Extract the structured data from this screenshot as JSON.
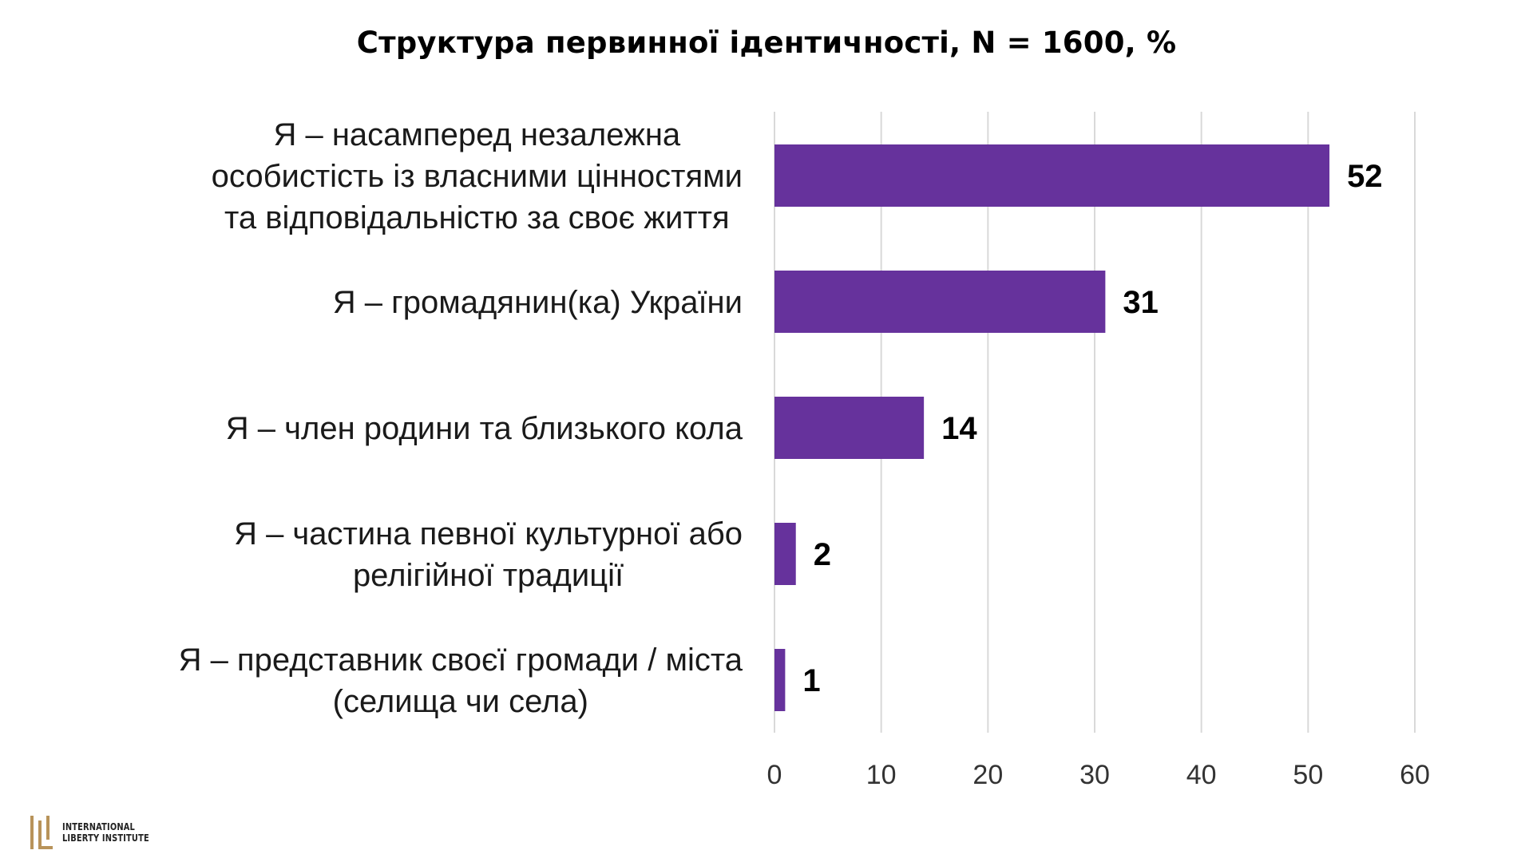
{
  "chart_data": {
    "type": "bar",
    "orientation": "horizontal",
    "title": "Структура первинної ідентичності, N = 1600, %",
    "categories": [
      [
        "Я – насамперед незалежна",
        "особистість із власними цінностями",
        "та відповідальністю за своє життя"
      ],
      [
        "Я – громадянин(ка) України"
      ],
      [
        "Я – член родини та близького кола"
      ],
      [
        "Я – частина певної культурної або",
        "релігійної традиції"
      ],
      [
        "Я – представник своєї громади / міста",
        "(селища чи села)"
      ]
    ],
    "values": [
      52,
      31,
      14,
      2,
      1
    ],
    "xlim": [
      0,
      60
    ],
    "xticks": [
      0,
      10,
      20,
      30,
      40,
      50,
      60
    ],
    "grid": true,
    "bar_color": "#66329c",
    "grid_color": "#d9d9d9"
  },
  "logo": {
    "line1": "INTERNATIONAL",
    "line2": "LIBERTY INSTITUTE",
    "color": "#b8935a"
  }
}
